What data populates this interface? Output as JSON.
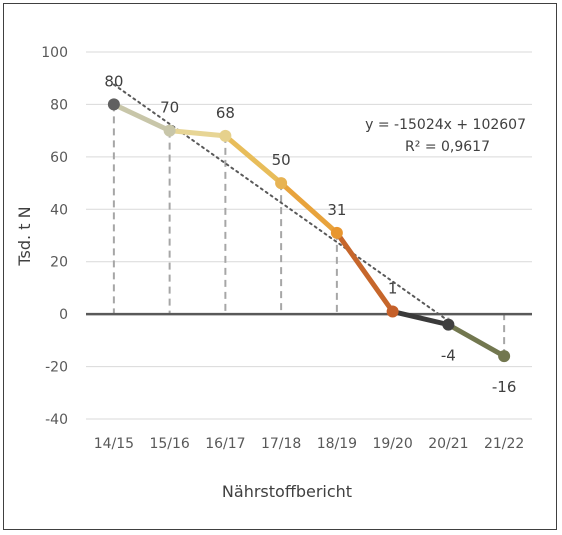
{
  "chart_data": {
    "type": "line",
    "categories": [
      "14/15",
      "15/16",
      "16/17",
      "17/18",
      "18/19",
      "19/20",
      "20/21",
      "21/22"
    ],
    "values": [
      80,
      70,
      68,
      50,
      31,
      1,
      -4,
      -16
    ],
    "data_labels": [
      "80",
      "70",
      "68",
      "50",
      "31",
      "1",
      "-4",
      "-16"
    ],
    "segment_colors": [
      "#c8c6a9",
      "#e7d595",
      "#e8bd5a",
      "#e8a33c",
      "#c6662b",
      "#3a3a3a",
      "#72774f"
    ],
    "marker_colors": [
      "#606060",
      "#c8c6a9",
      "#e6d18c",
      "#e7b353",
      "#e8962f",
      "#c5602a",
      "#404040",
      "#72774f"
    ],
    "ylabel": "Tsd. t N",
    "xlabel": "Nährstoffbericht",
    "ylim": [
      -40,
      100
    ],
    "yticks": [
      -40,
      -20,
      0,
      20,
      40,
      60,
      80,
      100
    ],
    "grid": true,
    "trendline": {
      "type": "linear",
      "equation": "y = -15024x + 102607",
      "r_squared": "R² = 0,9617"
    }
  }
}
